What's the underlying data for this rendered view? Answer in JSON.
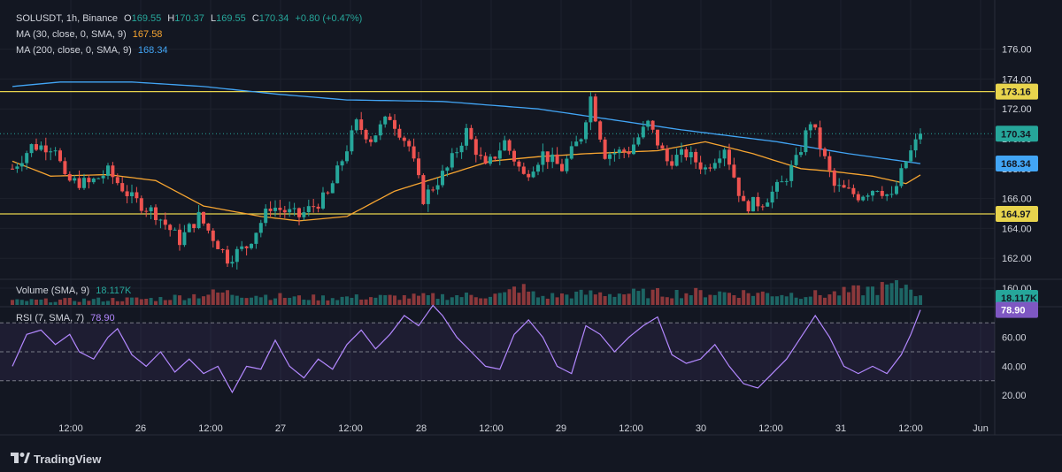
{
  "header": {
    "symbol": "SOLUSDT, 1h, Binance",
    "o_label": "O",
    "o": "169.55",
    "h_label": "H",
    "h": "170.37",
    "l_label": "L",
    "l": "169.55",
    "c_label": "C",
    "c": "170.34",
    "change": "+0.80 (+0.47%)"
  },
  "indicators": {
    "ma30_label": "MA (30, close, 0, SMA, 9)",
    "ma30_value": "167.58",
    "ma200_label": "MA (200, close, 0, SMA, 9)",
    "ma200_value": "168.34",
    "volume_label": "Volume (SMA, 9)",
    "volume_value": "18.117K",
    "rsi_label": "RSI (7, SMA, 7)",
    "rsi_value": "78.90"
  },
  "branding": {
    "watermark": "TradingView"
  },
  "colors": {
    "background": "#131722",
    "up": "#26a69a",
    "down": "#ef5350",
    "ma30": "#f7a531",
    "ma200": "#42a5f5",
    "hline": "#e8d44d",
    "rsi": "#b388ff",
    "text": "#d1d4dc",
    "grid": "#1e222d"
  },
  "chart_data": [
    {
      "type": "candlestick",
      "title": "SOLUSDT, 1h, Binance",
      "ylim": [
        159.2,
        177.2
      ],
      "y_ticks": [
        "176.00",
        "174.00",
        "172.00",
        "170.00",
        "168.00",
        "166.00",
        "164.00",
        "162.00",
        "160.00"
      ],
      "x_ticks": [
        "12:00",
        "26",
        "12:00",
        "27",
        "12:00",
        "28",
        "12:00",
        "29",
        "12:00",
        "30",
        "12:00",
        "31",
        "12:00",
        "Jun"
      ],
      "horizontal_levels": [
        173.16,
        164.97
      ],
      "price_labels": {
        "last": "170.34",
        "ma200": "168.34",
        "upper_level": "173.16",
        "lower_level": "164.97"
      },
      "key_points": [
        {
          "t": 0,
          "v": 168.0
        },
        {
          "t": 4,
          "v": 169.5
        },
        {
          "t": 9,
          "v": 169.5
        },
        {
          "t": 11,
          "v": 167.2
        },
        {
          "t": 16,
          "v": 167.0
        },
        {
          "t": 20,
          "v": 167.8
        },
        {
          "t": 25,
          "v": 166.0
        },
        {
          "t": 30,
          "v": 165.0
        },
        {
          "t": 35,
          "v": 163.2
        },
        {
          "t": 39,
          "v": 164.8
        },
        {
          "t": 45,
          "v": 162.0
        },
        {
          "t": 49,
          "v": 162.8
        },
        {
          "t": 54,
          "v": 165.5
        },
        {
          "t": 60,
          "v": 164.8
        },
        {
          "t": 66,
          "v": 166.2
        },
        {
          "t": 72,
          "v": 171.0
        },
        {
          "t": 75,
          "v": 170.0
        },
        {
          "t": 79,
          "v": 171.5
        },
        {
          "t": 83,
          "v": 169.5
        },
        {
          "t": 86,
          "v": 166.0
        },
        {
          "t": 91,
          "v": 168.0
        },
        {
          "t": 95,
          "v": 170.5
        },
        {
          "t": 99,
          "v": 168.0
        },
        {
          "t": 103,
          "v": 169.8
        },
        {
          "t": 107,
          "v": 167.5
        },
        {
          "t": 111,
          "v": 169.0
        },
        {
          "t": 115,
          "v": 168.0
        },
        {
          "t": 119,
          "v": 170.2
        },
        {
          "t": 121,
          "v": 172.8
        },
        {
          "t": 124,
          "v": 169.0
        },
        {
          "t": 129,
          "v": 169.2
        },
        {
          "t": 133,
          "v": 171.0
        },
        {
          "t": 137,
          "v": 168.5
        },
        {
          "t": 141,
          "v": 169.0
        },
        {
          "t": 145,
          "v": 168.0
        },
        {
          "t": 149,
          "v": 169.5
        },
        {
          "t": 153,
          "v": 165.5
        },
        {
          "t": 157,
          "v": 165.8
        },
        {
          "t": 161,
          "v": 167.0
        },
        {
          "t": 164,
          "v": 168.5
        },
        {
          "t": 167,
          "v": 171.2
        },
        {
          "t": 169,
          "v": 169.5
        },
        {
          "t": 172,
          "v": 166.8
        },
        {
          "t": 177,
          "v": 166.2
        },
        {
          "t": 181,
          "v": 166.8
        },
        {
          "t": 184,
          "v": 166.0
        },
        {
          "t": 187,
          "v": 168.5
        },
        {
          "t": 190,
          "v": 170.3
        }
      ],
      "ma30_points": [
        {
          "t": 0,
          "v": 168.5
        },
        {
          "t": 8,
          "v": 167.5
        },
        {
          "t": 20,
          "v": 167.6
        },
        {
          "t": 30,
          "v": 167.2
        },
        {
          "t": 40,
          "v": 165.5
        },
        {
          "t": 52,
          "v": 164.8
        },
        {
          "t": 60,
          "v": 164.5
        },
        {
          "t": 70,
          "v": 164.8
        },
        {
          "t": 80,
          "v": 166.5
        },
        {
          "t": 90,
          "v": 167.5
        },
        {
          "t": 100,
          "v": 168.5
        },
        {
          "t": 110,
          "v": 168.8
        },
        {
          "t": 120,
          "v": 169.0
        },
        {
          "t": 135,
          "v": 169.2
        },
        {
          "t": 145,
          "v": 169.8
        },
        {
          "t": 155,
          "v": 169.0
        },
        {
          "t": 165,
          "v": 168.0
        },
        {
          "t": 172,
          "v": 167.8
        },
        {
          "t": 180,
          "v": 167.5
        },
        {
          "t": 187,
          "v": 167.0
        },
        {
          "t": 190,
          "v": 167.58
        }
      ],
      "ma200_points": [
        {
          "t": 0,
          "v": 173.5
        },
        {
          "t": 10,
          "v": 173.8
        },
        {
          "t": 25,
          "v": 173.8
        },
        {
          "t": 40,
          "v": 173.5
        },
        {
          "t": 55,
          "v": 173.0
        },
        {
          "t": 70,
          "v": 172.6
        },
        {
          "t": 90,
          "v": 172.5
        },
        {
          "t": 110,
          "v": 172.0
        },
        {
          "t": 125,
          "v": 171.3
        },
        {
          "t": 140,
          "v": 170.6
        },
        {
          "t": 160,
          "v": 169.8
        },
        {
          "t": 175,
          "v": 169.0
        },
        {
          "t": 190,
          "v": 168.34
        }
      ]
    },
    {
      "type": "bar",
      "title": "Volume (SMA, 9)",
      "last_value": "18.117K",
      "value_unit": "relative (0-1)",
      "profile": [
        {
          "t": 0,
          "v": 0.2
        },
        {
          "t": 30,
          "v": 0.3
        },
        {
          "t": 44,
          "v": 0.6
        },
        {
          "t": 60,
          "v": 0.35
        },
        {
          "t": 85,
          "v": 0.4
        },
        {
          "t": 103,
          "v": 0.5
        },
        {
          "t": 106,
          "v": 0.9
        },
        {
          "t": 110,
          "v": 0.4
        },
        {
          "t": 120,
          "v": 0.55
        },
        {
          "t": 150,
          "v": 0.6
        },
        {
          "t": 170,
          "v": 0.5
        },
        {
          "t": 188,
          "v": 1.0
        },
        {
          "t": 190,
          "v": 0.35
        }
      ]
    },
    {
      "type": "line",
      "title": "RSI (7, SMA, 7)",
      "last_value": "78.90",
      "y_ticks": [
        "60.00",
        "40.00",
        "20.00"
      ],
      "levels": [
        70,
        50,
        30
      ],
      "band": [
        30,
        70
      ],
      "points": [
        {
          "t": 0,
          "v": 40
        },
        {
          "t": 3,
          "v": 62
        },
        {
          "t": 6,
          "v": 65
        },
        {
          "t": 9,
          "v": 55
        },
        {
          "t": 12,
          "v": 62
        },
        {
          "t": 14,
          "v": 50
        },
        {
          "t": 17,
          "v": 45
        },
        {
          "t": 20,
          "v": 60
        },
        {
          "t": 22,
          "v": 66
        },
        {
          "t": 25,
          "v": 48
        },
        {
          "t": 28,
          "v": 40
        },
        {
          "t": 31,
          "v": 50
        },
        {
          "t": 34,
          "v": 36
        },
        {
          "t": 37,
          "v": 45
        },
        {
          "t": 40,
          "v": 35
        },
        {
          "t": 43,
          "v": 40
        },
        {
          "t": 46,
          "v": 22
        },
        {
          "t": 49,
          "v": 40
        },
        {
          "t": 52,
          "v": 38
        },
        {
          "t": 55,
          "v": 58
        },
        {
          "t": 58,
          "v": 40
        },
        {
          "t": 61,
          "v": 32
        },
        {
          "t": 64,
          "v": 45
        },
        {
          "t": 67,
          "v": 38
        },
        {
          "t": 70,
          "v": 55
        },
        {
          "t": 73,
          "v": 65
        },
        {
          "t": 76,
          "v": 52
        },
        {
          "t": 79,
          "v": 62
        },
        {
          "t": 82,
          "v": 75
        },
        {
          "t": 85,
          "v": 68
        },
        {
          "t": 88,
          "v": 82
        },
        {
          "t": 90,
          "v": 75
        },
        {
          "t": 93,
          "v": 60
        },
        {
          "t": 96,
          "v": 50
        },
        {
          "t": 99,
          "v": 40
        },
        {
          "t": 102,
          "v": 38
        },
        {
          "t": 105,
          "v": 62
        },
        {
          "t": 108,
          "v": 72
        },
        {
          "t": 111,
          "v": 60
        },
        {
          "t": 114,
          "v": 40
        },
        {
          "t": 117,
          "v": 35
        },
        {
          "t": 120,
          "v": 68
        },
        {
          "t": 123,
          "v": 62
        },
        {
          "t": 126,
          "v": 50
        },
        {
          "t": 129,
          "v": 60
        },
        {
          "t": 132,
          "v": 68
        },
        {
          "t": 135,
          "v": 74
        },
        {
          "t": 138,
          "v": 48
        },
        {
          "t": 141,
          "v": 42
        },
        {
          "t": 144,
          "v": 45
        },
        {
          "t": 147,
          "v": 55
        },
        {
          "t": 150,
          "v": 40
        },
        {
          "t": 153,
          "v": 28
        },
        {
          "t": 156,
          "v": 25
        },
        {
          "t": 159,
          "v": 35
        },
        {
          "t": 162,
          "v": 45
        },
        {
          "t": 165,
          "v": 60
        },
        {
          "t": 168,
          "v": 75
        },
        {
          "t": 171,
          "v": 60
        },
        {
          "t": 174,
          "v": 40
        },
        {
          "t": 177,
          "v": 35
        },
        {
          "t": 180,
          "v": 40
        },
        {
          "t": 183,
          "v": 35
        },
        {
          "t": 186,
          "v": 48
        },
        {
          "t": 188,
          "v": 62
        },
        {
          "t": 190,
          "v": 78.9
        }
      ]
    }
  ]
}
